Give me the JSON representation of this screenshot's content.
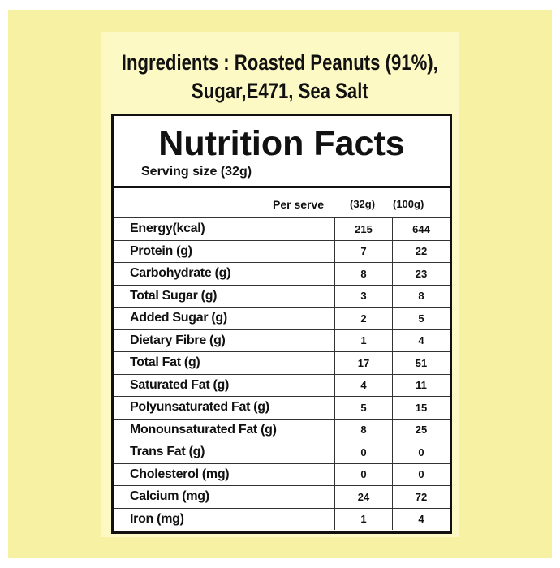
{
  "ingredients": [
    "Ingredients : Roasted Peanuts (91%),",
    "Sugar,E471, Sea Salt"
  ],
  "label": {
    "title": "Nutrition Facts",
    "serving_size": "Serving size (32g)",
    "header": {
      "per_serve": "Per serve",
      "col1": "(32g)",
      "col2": "(100g)"
    },
    "rows": [
      [
        "Energy(kcal)",
        215,
        644
      ],
      [
        "Protein (g)",
        7,
        22
      ],
      [
        "Carbohydrate (g)",
        8,
        23
      ],
      [
        "Total Sugar (g)",
        3,
        8
      ],
      [
        "Added Sugar (g)",
        2,
        5
      ],
      [
        "Dietary Fibre (g)",
        1,
        4
      ],
      [
        "Total Fat (g)",
        17,
        51
      ],
      [
        "Saturated Fat (g)",
        4,
        11
      ],
      [
        "Polyunsaturated Fat (g)",
        5,
        15
      ],
      [
        "Monounsaturated Fat (g)",
        8,
        25
      ],
      [
        "Trans Fat (g)",
        0,
        0
      ],
      [
        "Cholesterol (mg)",
        0,
        0
      ],
      [
        "Calcium (mg)",
        24,
        72
      ],
      [
        "Iron (mg)",
        1,
        4
      ]
    ]
  }
}
